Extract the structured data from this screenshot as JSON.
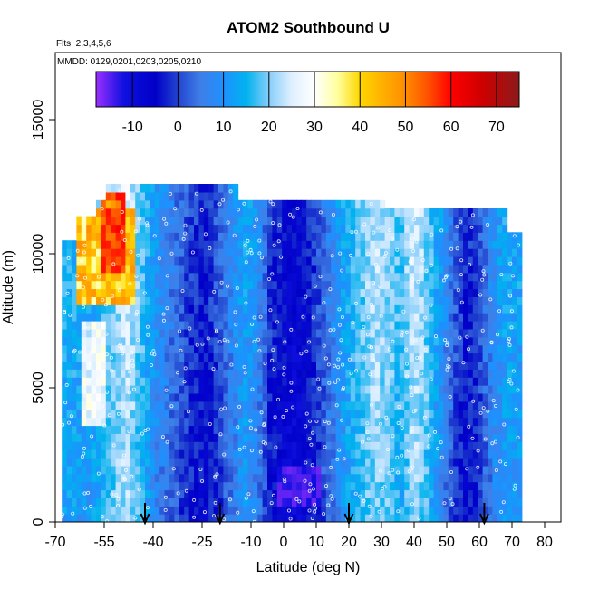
{
  "chart_data": {
    "type": "heatmap",
    "title": "ATOM2 Southbound U",
    "annotations": [
      "Flts: 2,3,4,5,6",
      "MMDD: 0129,0201,0203,0205,0210"
    ],
    "xlabel": "Latitude (deg N)",
    "ylabel": "Altitude (m)",
    "xlim": [
      -70,
      85
    ],
    "ylim": [
      0,
      17500
    ],
    "x_ticks": [
      -70,
      -55,
      -40,
      -25,
      -10,
      0,
      10,
      20,
      30,
      40,
      50,
      60,
      70,
      80
    ],
    "x_tick_labels": [
      "-70",
      "-55",
      "-40",
      "-25",
      "-10",
      "0",
      "10",
      "20",
      "30",
      "40",
      "50",
      "60",
      "70",
      "80"
    ],
    "y_ticks": [
      0,
      5000,
      10000,
      15000
    ],
    "y_tick_labels": [
      "0",
      "5000",
      "10000",
      "15000"
    ],
    "colorbar": {
      "range": [
        -18,
        75
      ],
      "ticks": [
        -10,
        0,
        10,
        20,
        30,
        40,
        50,
        60,
        70
      ],
      "tick_labels": [
        "-10",
        "0",
        "10",
        "20",
        "30",
        "40",
        "50",
        "60",
        "70"
      ],
      "gradient": [
        [
          -18,
          "#9b30ff"
        ],
        [
          -12,
          "#1010e0"
        ],
        [
          -5,
          "#0000c8"
        ],
        [
          0,
          "#2244d0"
        ],
        [
          5,
          "#3f7fe8"
        ],
        [
          10,
          "#1e90ff"
        ],
        [
          15,
          "#00b2ee"
        ],
        [
          20,
          "#87cefa"
        ],
        [
          25,
          "#dff0ff"
        ],
        [
          30,
          "#ffffff"
        ],
        [
          35,
          "#ffffa0"
        ],
        [
          40,
          "#ffd700"
        ],
        [
          45,
          "#ffb000"
        ],
        [
          50,
          "#ff8c00"
        ],
        [
          55,
          "#ff5000"
        ],
        [
          60,
          "#ff0000"
        ],
        [
          67,
          "#cd0000"
        ],
        [
          75,
          "#8b1a1a"
        ]
      ]
    },
    "data_extent": {
      "lat": [
        -68,
        72
      ],
      "alt": [
        0,
        12400
      ]
    },
    "flight_markers_lat": [
      -42.5,
      -19.5,
      20,
      61.5
    ],
    "profile_columns": [
      {
        "lat": -64,
        "u": 12
      },
      {
        "lat": -60,
        "u": 10
      },
      {
        "lat": -56,
        "u": 14
      },
      {
        "lat": -52,
        "u": 18
      },
      {
        "lat": -48,
        "u": 22
      },
      {
        "lat": -44,
        "u": 16
      },
      {
        "lat": -40,
        "u": 8
      },
      {
        "lat": -36,
        "u": 4
      },
      {
        "lat": -32,
        "u": 0
      },
      {
        "lat": -28,
        "u": -4
      },
      {
        "lat": -24,
        "u": -6
      },
      {
        "lat": -20,
        "u": -2
      },
      {
        "lat": -16,
        "u": 4
      },
      {
        "lat": -12,
        "u": 10
      },
      {
        "lat": -8,
        "u": 6
      },
      {
        "lat": -4,
        "u": -4
      },
      {
        "lat": 0,
        "u": -8
      },
      {
        "lat": 4,
        "u": -10
      },
      {
        "lat": 8,
        "u": -6
      },
      {
        "lat": 12,
        "u": 0
      },
      {
        "lat": 16,
        "u": 6
      },
      {
        "lat": 20,
        "u": 12
      },
      {
        "lat": 24,
        "u": 16
      },
      {
        "lat": 28,
        "u": 20
      },
      {
        "lat": 32,
        "u": 18
      },
      {
        "lat": 36,
        "u": 14
      },
      {
        "lat": 40,
        "u": 22
      },
      {
        "lat": 44,
        "u": 16
      },
      {
        "lat": 48,
        "u": 8
      },
      {
        "lat": 52,
        "u": 0
      },
      {
        "lat": 56,
        "u": -6
      },
      {
        "lat": 60,
        "u": -2
      },
      {
        "lat": 64,
        "u": 6
      },
      {
        "lat": 68,
        "u": 10
      }
    ],
    "jet_features": [
      {
        "lat": [
          -64,
          -46
        ],
        "alt": [
          8000,
          11800
        ],
        "u": 50
      },
      {
        "lat": [
          -56,
          -48
        ],
        "alt": [
          9200,
          12400
        ],
        "u": 60
      },
      {
        "lat": [
          -62,
          -54
        ],
        "alt": [
          3500,
          7500
        ],
        "u": 32
      },
      {
        "lat": [
          -2,
          12
        ],
        "alt": [
          500,
          2200
        ],
        "u": -16
      }
    ]
  }
}
